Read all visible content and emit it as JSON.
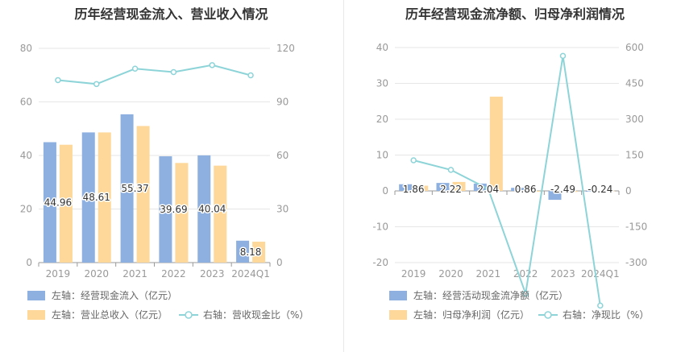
{
  "chart_data": [
    {
      "type": "bar",
      "title": "历年经营现金流入、营业收入情况",
      "categories": [
        "2019",
        "2020",
        "2021",
        "2022",
        "2023",
        "2024Q1"
      ],
      "left_axis": {
        "min": 0,
        "max": 80,
        "ticks": [
          "0",
          "20",
          "40",
          "60",
          "80"
        ]
      },
      "right_axis": {
        "min": 0,
        "max": 120,
        "ticks": [
          "0",
          "30",
          "60",
          "90",
          "120"
        ]
      },
      "grid": true,
      "legend_position": "bottom-left",
      "series": [
        {
          "name": "左轴：经营现金流入（亿元）",
          "kind": "bar",
          "axis": "left",
          "color": "#8eb0e0",
          "values": [
            44.96,
            48.61,
            55.37,
            39.69,
            40.04,
            8.18
          ],
          "labels": [
            "44.96",
            "48.61",
            "55.37",
            "39.69",
            "40.04",
            "8.18"
          ]
        },
        {
          "name": "左轴：营业总收入（亿元）",
          "kind": "bar",
          "axis": "left",
          "color": "#fdd89a",
          "values": [
            44.0,
            48.6,
            51.0,
            37.2,
            36.2,
            7.8
          ]
        },
        {
          "name": "右轴：营收现金比（%）",
          "kind": "line",
          "axis": "right",
          "color": "#8dd4d8",
          "values": [
            102.2,
            100.0,
            108.6,
            106.7,
            110.6,
            104.9
          ]
        }
      ]
    },
    {
      "type": "bar",
      "title": "历年经营现金流净额、归母净利润情况",
      "categories": [
        "2019",
        "2020",
        "2021",
        "2022",
        "2023",
        "2024Q1"
      ],
      "left_axis": {
        "min": -20,
        "max": 40,
        "ticks": [
          "-20",
          "-10",
          "0",
          "10",
          "20",
          "30",
          "40"
        ]
      },
      "right_axis": {
        "min": -300,
        "max": 600,
        "ticks": [
          "-300",
          "-150",
          "0",
          "150",
          "300",
          "450",
          "600"
        ]
      },
      "grid": true,
      "legend_position": "bottom-left",
      "series": [
        {
          "name": "左轴：经营活动现金流净额（亿元）",
          "kind": "bar",
          "axis": "left",
          "color": "#8eb0e0",
          "values": [
            1.86,
            2.22,
            2.04,
            0.86,
            -2.49,
            -0.24
          ],
          "labels": [
            "1.86",
            "2.22",
            "2.04",
            "0.86",
            "-2.49",
            "-0.24"
          ]
        },
        {
          "name": "左轴：归母净利润（亿元）",
          "kind": "bar",
          "axis": "left",
          "color": "#fdd89a",
          "values": [
            1.45,
            2.5,
            26.3,
            -0.2,
            -0.3,
            0.05
          ]
        },
        {
          "name": "右轴：净现比（%）",
          "kind": "line",
          "axis": "right",
          "color": "#8dd4d8",
          "values": [
            128,
            88,
            8,
            -430,
            565,
            -480
          ]
        }
      ]
    }
  ]
}
